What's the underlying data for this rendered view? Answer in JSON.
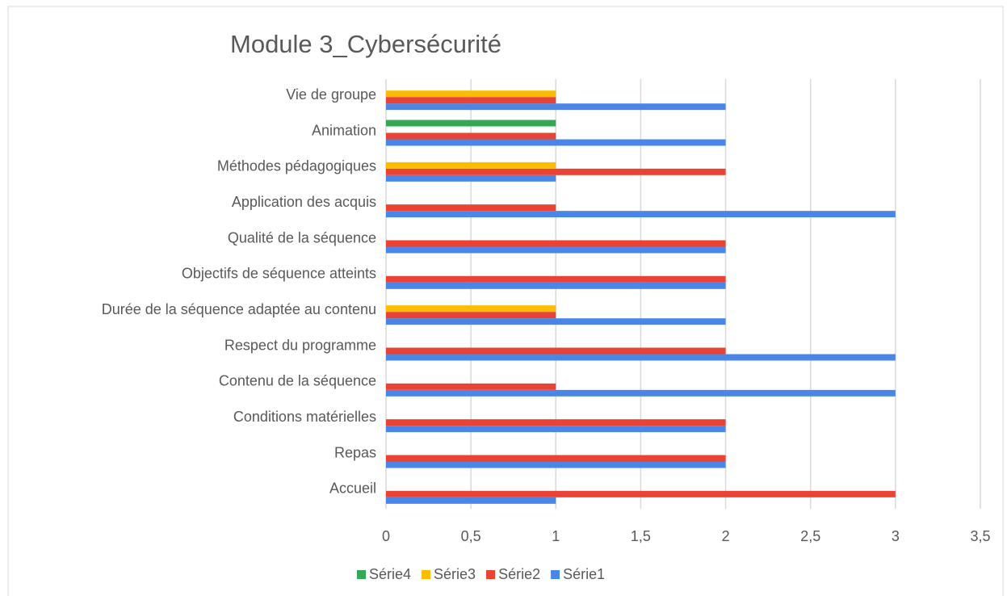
{
  "chart_data": {
    "type": "barh",
    "title": "Module 3_Cybersécurité",
    "categories": [
      "Accueil",
      "Repas",
      "Conditions matérielles",
      "Contenu de la séquence",
      "Respect du programme",
      "Durée de la séquence adaptée au contenu",
      "Objectifs de séquence atteints",
      "Qualité de la séquence",
      "Application des acquis",
      "Méthodes pédagogiques",
      "Animation",
      "Vie de groupe"
    ],
    "series": [
      {
        "name": "Série1",
        "color": "#4a86e8",
        "values": [
          1,
          2,
          2,
          3,
          3,
          2,
          2,
          2,
          3,
          1,
          2,
          2
        ]
      },
      {
        "name": "Série2",
        "color": "#ea4335",
        "values": [
          3,
          2,
          2,
          1,
          2,
          1,
          2,
          2,
          1,
          2,
          1,
          1
        ]
      },
      {
        "name": "Série3",
        "color": "#fbbc04",
        "values": [
          null,
          null,
          null,
          null,
          null,
          1,
          null,
          null,
          null,
          1,
          null,
          1
        ]
      },
      {
        "name": "Série4",
        "color": "#34a853",
        "values": [
          null,
          null,
          null,
          null,
          null,
          null,
          null,
          null,
          null,
          null,
          1,
          null
        ]
      }
    ],
    "xlim": [
      0,
      3.5
    ],
    "xticks": [
      0,
      {
        "value": 0.5,
        "label": "0,5"
      },
      1,
      {
        "value": 1.5,
        "label": "1,5"
      },
      2,
      {
        "value": 2.5,
        "label": "2,5"
      },
      3,
      {
        "value": 3.5,
        "label": "3,5"
      }
    ],
    "grid": true,
    "legend": "bottom"
  }
}
